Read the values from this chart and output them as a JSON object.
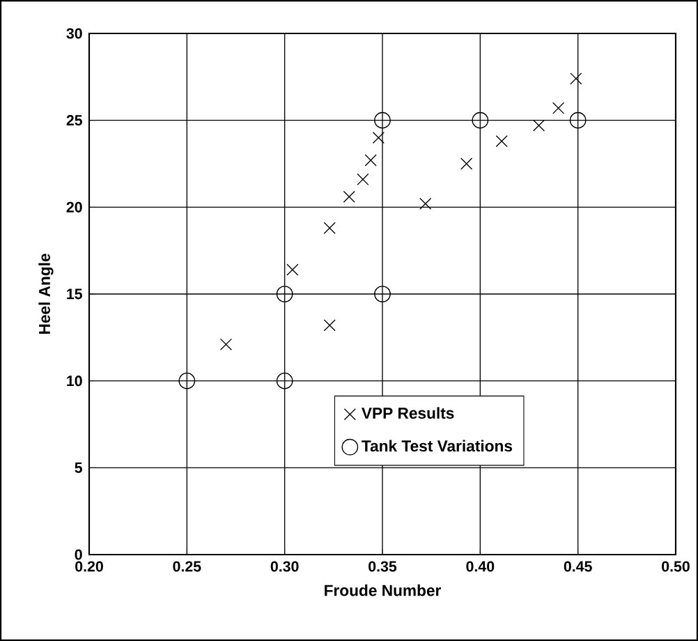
{
  "chart_data": {
    "type": "scatter",
    "xlabel": "Froude Number",
    "ylabel": "Heel Angle",
    "xlim": [
      0.2,
      0.5
    ],
    "ylim": [
      0,
      30
    ],
    "xticks": [
      {
        "value": 0.2,
        "label": "0.20"
      },
      {
        "value": 0.25,
        "label": "0.25"
      },
      {
        "value": 0.3,
        "label": "0.30"
      },
      {
        "value": 0.35,
        "label": "0.35"
      },
      {
        "value": 0.4,
        "label": "0.40"
      },
      {
        "value": 0.45,
        "label": "0.45"
      },
      {
        "value": 0.5,
        "label": "0.50"
      }
    ],
    "yticks": [
      0,
      5,
      10,
      15,
      20,
      25,
      30
    ],
    "grid": true,
    "legend": "bottom right",
    "series": [
      {
        "name": "VPP Results",
        "color": "#000000",
        "marker": "cross",
        "x": [
          0.27,
          0.304,
          0.323,
          0.323,
          0.333,
          0.34,
          0.344,
          0.348,
          0.372,
          0.393,
          0.411,
          0.43,
          0.44,
          0.449
        ],
        "values": [
          12.1,
          16.4,
          13.2,
          18.8,
          20.6,
          21.6,
          22.7,
          24.0,
          20.2,
          22.5,
          23.8,
          24.7,
          25.7,
          27.4
        ]
      },
      {
        "name": "Tank Test Variations",
        "color": "#000000",
        "marker": "circle",
        "x": [
          0.25,
          0.3,
          0.3,
          0.35,
          0.35,
          0.4,
          0.45
        ],
        "values": [
          10,
          10,
          15,
          15,
          25,
          25,
          25
        ]
      }
    ]
  }
}
